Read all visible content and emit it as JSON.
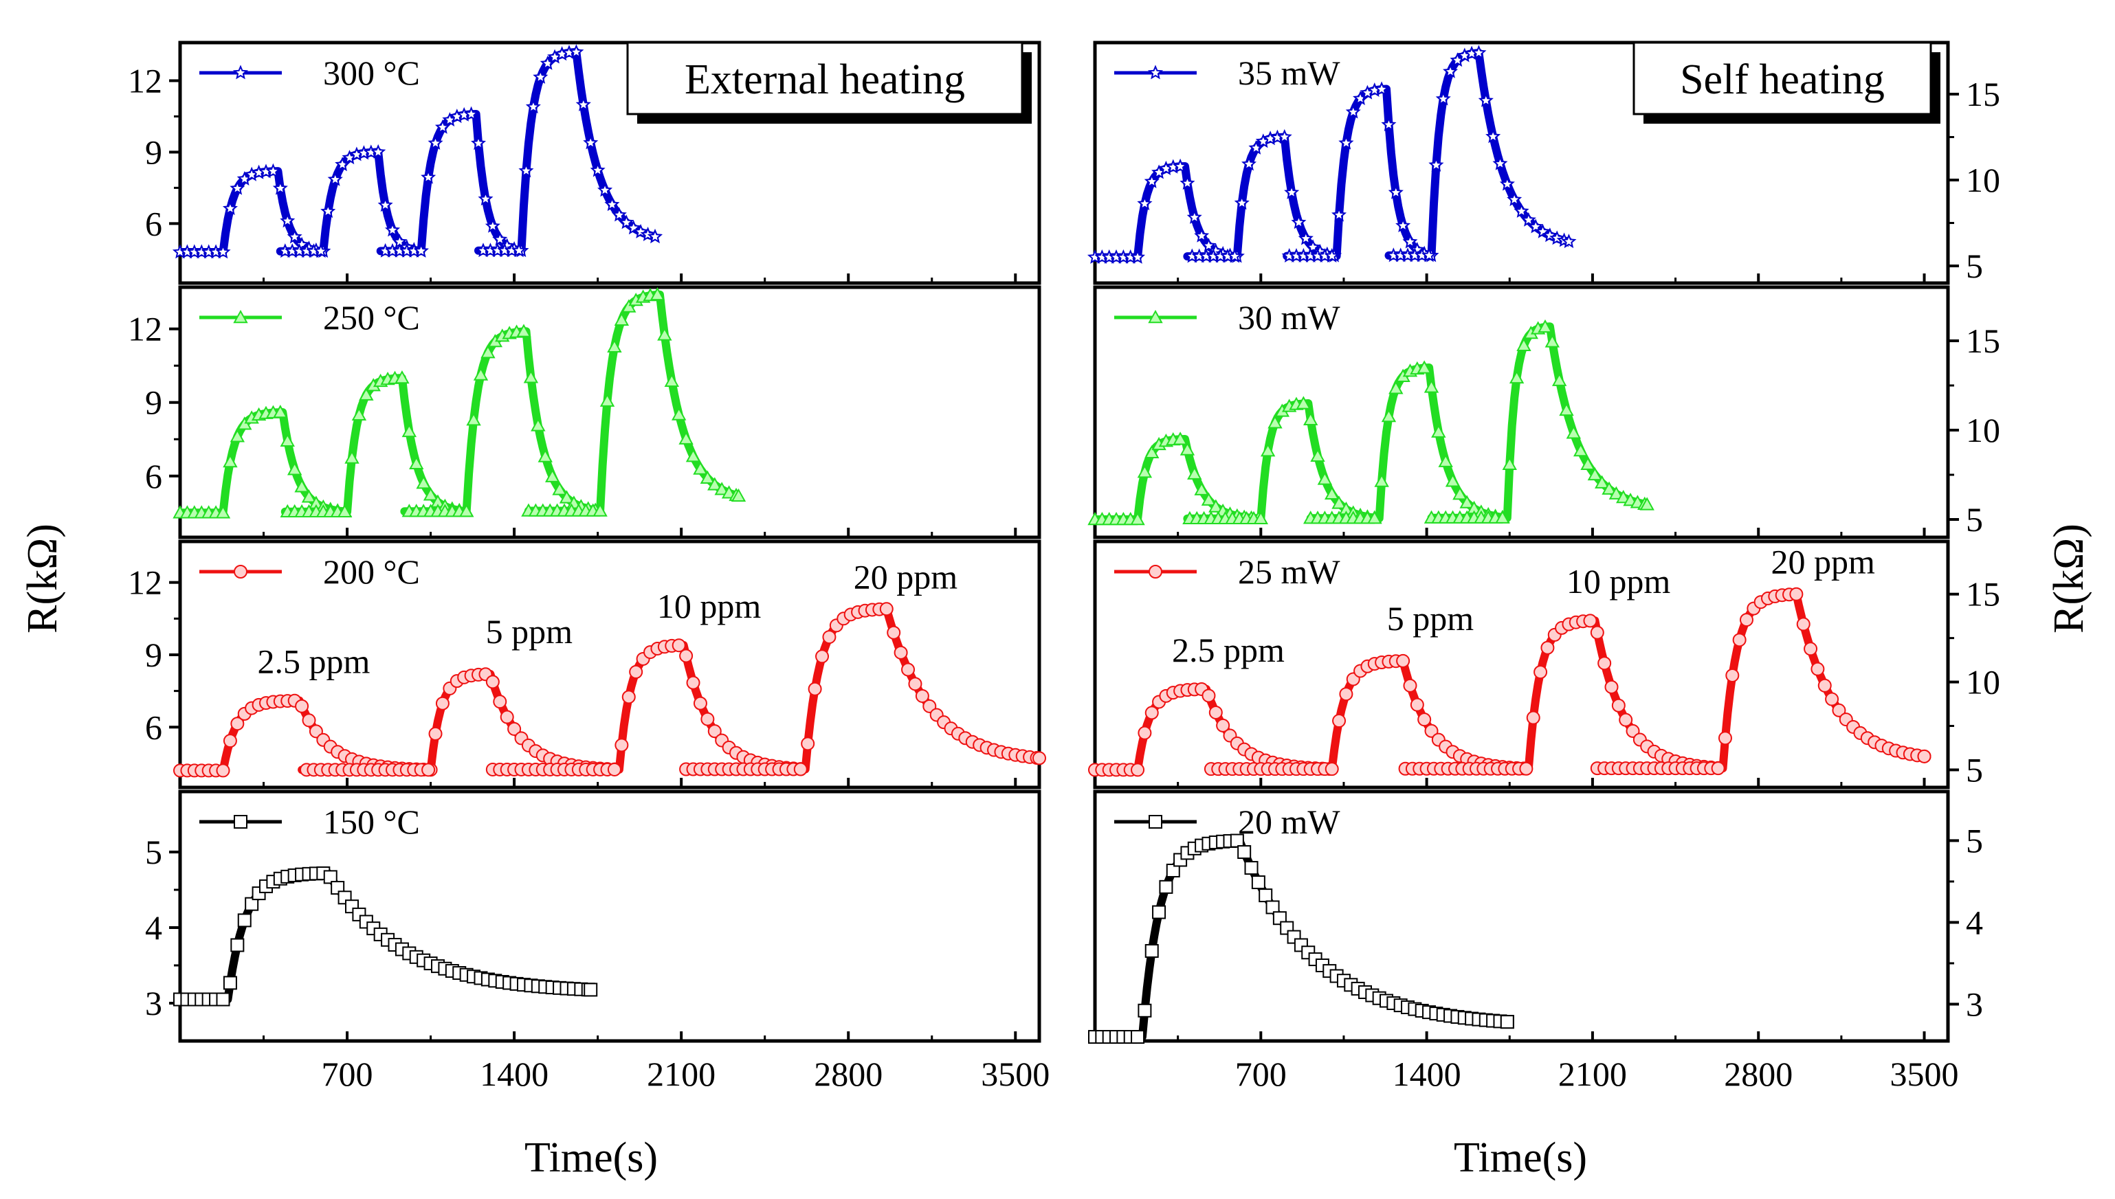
{
  "figure": {
    "x_label": "Time(s)",
    "y_label": "R(kΩ)"
  },
  "chart_data": [
    {
      "type": "line",
      "title": "External heating",
      "xlabel": "Time(s)",
      "ylabel": "R(kΩ)",
      "xlim": [
        0,
        3600
      ],
      "x_ticks": [
        700,
        1400,
        2100,
        2800,
        3500
      ],
      "panels": [
        {
          "series": [
            {
              "name": "300 °C",
              "color": "#0000cc",
              "marker": "star"
            }
          ],
          "ylim": [
            3.5,
            13.6
          ],
          "y_ticks": [
            6,
            9,
            12
          ],
          "base": 4.8,
          "peaks": [
            8.2,
            9.0,
            10.6,
            13.2
          ],
          "on": [
            180,
            600,
            1010,
            1430
          ],
          "off": [
            410,
            830,
            1240,
            1660
          ],
          "end": 1990,
          "annotations": []
        },
        {
          "series": [
            {
              "name": "250 °C",
              "color": "#22dd22",
              "marker": "triangle"
            }
          ],
          "ylim": [
            3.5,
            13.7
          ],
          "y_ticks": [
            6,
            9,
            12
          ],
          "base": 4.5,
          "peaks": [
            8.6,
            10.0,
            11.9,
            13.4
          ],
          "on": [
            180,
            700,
            1200,
            1760
          ],
          "off": [
            430,
            930,
            1450,
            2010
          ],
          "end": 2340,
          "annotations": []
        },
        {
          "series": [
            {
              "name": "200 °C",
              "color": "#ee1111",
              "marker": "circle"
            }
          ],
          "ylim": [
            3.5,
            13.7
          ],
          "y_ticks": [
            6,
            9,
            12
          ],
          "base": 4.2,
          "peaks": [
            7.1,
            8.2,
            9.4,
            10.9
          ],
          "on": [
            180,
            1050,
            1840,
            2620
          ],
          "off": [
            500,
            1300,
            2110,
            2960
          ],
          "end": 3600,
          "annotations": [
            "2.5 ppm",
            "5 ppm",
            "10 ppm",
            "20 ppm"
          ]
        },
        {
          "series": [
            {
              "name": "150 °C",
              "color": "#000000",
              "marker": "square"
            }
          ],
          "ylim": [
            2.5,
            5.8
          ],
          "y_ticks": [
            3,
            4,
            5
          ],
          "base": 3.05,
          "peaks": [
            4.72
          ],
          "on": [
            200
          ],
          "off": [
            620
          ],
          "end": 1720,
          "annotations": []
        }
      ]
    },
    {
      "type": "line",
      "title": "Self heating",
      "xlabel": "Time(s)",
      "ylabel": "R(kΩ)",
      "xlim": [
        0,
        3600
      ],
      "x_ticks": [
        700,
        1400,
        2100,
        2800,
        3500
      ],
      "panels": [
        {
          "series": [
            {
              "name": "35 mW",
              "color": "#0000cc",
              "marker": "star"
            }
          ],
          "ylim": [
            4,
            18
          ],
          "y_ticks": [
            5,
            10,
            15
          ],
          "base": 5.5,
          "peaks": [
            10.8,
            12.5,
            15.3,
            17.4
          ],
          "on": [
            180,
            600,
            1020,
            1420
          ],
          "off": [
            380,
            800,
            1230,
            1620
          ],
          "end": 2000,
          "annotations": []
        },
        {
          "series": [
            {
              "name": "30 mW",
              "color": "#22dd22",
              "marker": "triangle"
            }
          ],
          "ylim": [
            4,
            18
          ],
          "y_ticks": [
            5,
            10,
            15
          ],
          "base": 5.0,
          "peaks": [
            9.5,
            11.5,
            13.5,
            15.8
          ],
          "on": [
            180,
            700,
            1200,
            1740
          ],
          "off": [
            380,
            900,
            1410,
            1920
          ],
          "end": 2330,
          "annotations": []
        },
        {
          "series": [
            {
              "name": "25 mW",
              "color": "#ee1111",
              "marker": "circle"
            }
          ],
          "ylim": [
            4,
            18
          ],
          "y_ticks": [
            5,
            10,
            15
          ],
          "base": 5.0,
          "peaks": [
            9.6,
            11.2,
            13.5,
            15.0
          ],
          "on": [
            180,
            1000,
            1830,
            2650
          ],
          "off": [
            470,
            1300,
            2110,
            2960
          ],
          "end": 3500,
          "annotations": [
            "2.5 ppm",
            "5 ppm",
            "10 ppm",
            "20 ppm"
          ]
        },
        {
          "series": [
            {
              "name": "20 mW",
              "color": "#000000",
              "marker": "square"
            }
          ],
          "ylim": [
            2.55,
            5.6
          ],
          "y_ticks": [
            3,
            4,
            5
          ],
          "base": 2.6,
          "peaks": [
            5.0
          ],
          "on": [
            200
          ],
          "off": [
            610
          ],
          "end": 1740,
          "annotations": []
        }
      ]
    }
  ]
}
